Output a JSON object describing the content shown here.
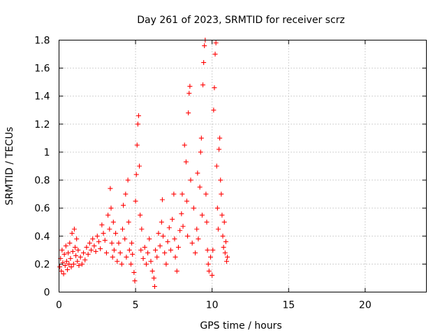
{
  "chart_data": {
    "type": "scatter",
    "title": "Day 261 of 2023, SRMTID for receiver scrz",
    "xlabel": "GPS time / hours",
    "ylabel": "SRMTID / TECUs",
    "xlim": [
      0,
      24
    ],
    "ylim": [
      0,
      1.8
    ],
    "xticks": [
      "0",
      "5",
      "10",
      "15",
      "20"
    ],
    "xtick_values": [
      0,
      5,
      10,
      15,
      20
    ],
    "yticks": [
      "0",
      "0.2",
      "0.4",
      "0.6",
      "0.8",
      "1",
      "1.2",
      "1.4",
      "1.6",
      "1.8"
    ],
    "ytick_values": [
      0,
      0.2,
      0.4,
      0.6,
      0.8,
      1.0,
      1.2,
      1.4,
      1.6,
      1.8
    ],
    "grid": true,
    "marker": "+",
    "color": "#ff0000",
    "series": [
      {
        "name": "SRMTID",
        "points": [
          [
            0.05,
            0.18
          ],
          [
            0.1,
            0.24
          ],
          [
            0.15,
            0.15
          ],
          [
            0.2,
            0.3
          ],
          [
            0.25,
            0.21
          ],
          [
            0.3,
            0.13
          ],
          [
            0.35,
            0.27
          ],
          [
            0.4,
            0.19
          ],
          [
            0.45,
            0.33
          ],
          [
            0.5,
            0.22
          ],
          [
            0.55,
            0.16
          ],
          [
            0.6,
            0.28
          ],
          [
            0.65,
            0.2
          ],
          [
            0.7,
            0.35
          ],
          [
            0.75,
            0.24
          ],
          [
            0.8,
            0.18
          ],
          [
            0.85,
            0.42
          ],
          [
            0.9,
            0.29
          ],
          [
            0.95,
            0.2
          ],
          [
            1.0,
            0.45
          ],
          [
            1.05,
            0.32
          ],
          [
            1.1,
            0.26
          ],
          [
            1.15,
            0.38
          ],
          [
            1.2,
            0.22
          ],
          [
            1.25,
            0.3
          ],
          [
            1.3,
            0.19
          ],
          [
            1.4,
            0.25
          ],
          [
            1.5,
            0.2
          ],
          [
            1.6,
            0.28
          ],
          [
            1.7,
            0.23
          ],
          [
            1.8,
            0.32
          ],
          [
            1.9,
            0.27
          ],
          [
            2.0,
            0.35
          ],
          [
            2.1,
            0.3
          ],
          [
            2.2,
            0.38
          ],
          [
            2.3,
            0.33
          ],
          [
            2.4,
            0.29
          ],
          [
            2.5,
            0.4
          ],
          [
            2.6,
            0.36
          ],
          [
            2.7,
            0.31
          ],
          [
            2.8,
            0.48
          ],
          [
            2.9,
            0.42
          ],
          [
            3.0,
            0.37
          ],
          [
            3.1,
            0.28
          ],
          [
            3.2,
            0.55
          ],
          [
            3.3,
            0.45
          ],
          [
            3.35,
            0.74
          ],
          [
            3.4,
            0.6
          ],
          [
            3.45,
            0.35
          ],
          [
            3.5,
            0.25
          ],
          [
            3.55,
            0.5
          ],
          [
            3.6,
            0.3
          ],
          [
            3.7,
            0.42
          ],
          [
            3.8,
            0.22
          ],
          [
            3.9,
            0.35
          ],
          [
            4.0,
            0.28
          ],
          [
            4.1,
            0.2
          ],
          [
            4.15,
            0.45
          ],
          [
            4.2,
            0.62
          ],
          [
            4.3,
            0.38
          ],
          [
            4.35,
            0.7
          ],
          [
            4.4,
            0.25
          ],
          [
            4.5,
            0.8
          ],
          [
            4.55,
            0.5
          ],
          [
            4.6,
            0.3
          ],
          [
            4.7,
            0.2
          ],
          [
            4.75,
            0.35
          ],
          [
            4.8,
            0.27
          ],
          [
            4.9,
            0.14
          ],
          [
            4.95,
            0.08
          ],
          [
            5.0,
            0.65
          ],
          [
            5.05,
            0.84
          ],
          [
            5.1,
            1.05
          ],
          [
            5.15,
            1.2
          ],
          [
            5.2,
            1.26
          ],
          [
            5.25,
            0.9
          ],
          [
            5.3,
            0.55
          ],
          [
            5.35,
            0.3
          ],
          [
            5.4,
            0.45
          ],
          [
            5.5,
            0.24
          ],
          [
            5.6,
            0.32
          ],
          [
            5.7,
            0.2
          ],
          [
            5.8,
            0.28
          ],
          [
            5.9,
            0.38
          ],
          [
            6.0,
            0.22
          ],
          [
            6.1,
            0.15
          ],
          [
            6.2,
            0.1
          ],
          [
            6.25,
            0.04
          ],
          [
            6.3,
            0.3
          ],
          [
            6.4,
            0.25
          ],
          [
            6.5,
            0.42
          ],
          [
            6.6,
            0.33
          ],
          [
            6.7,
            0.5
          ],
          [
            6.75,
            0.66
          ],
          [
            6.8,
            0.4
          ],
          [
            6.9,
            0.28
          ],
          [
            7.0,
            0.2
          ],
          [
            7.1,
            0.36
          ],
          [
            7.2,
            0.46
          ],
          [
            7.3,
            0.3
          ],
          [
            7.4,
            0.52
          ],
          [
            7.5,
            0.7
          ],
          [
            7.55,
            0.38
          ],
          [
            7.6,
            0.25
          ],
          [
            7.7,
            0.15
          ],
          [
            7.8,
            0.32
          ],
          [
            7.9,
            0.44
          ],
          [
            8.0,
            0.56
          ],
          [
            8.05,
            0.7
          ],
          [
            8.1,
            0.47
          ],
          [
            8.2,
            1.05
          ],
          [
            8.3,
            0.93
          ],
          [
            8.35,
            0.65
          ],
          [
            8.4,
            0.4
          ],
          [
            8.45,
            1.28
          ],
          [
            8.5,
            1.42
          ],
          [
            8.55,
            1.47
          ],
          [
            8.6,
            0.8
          ],
          [
            8.7,
            0.35
          ],
          [
            8.8,
            0.6
          ],
          [
            8.9,
            0.28
          ],
          [
            9.0,
            0.45
          ],
          [
            9.05,
            0.85
          ],
          [
            9.1,
            0.38
          ],
          [
            9.2,
            0.75
          ],
          [
            9.25,
            1.0
          ],
          [
            9.3,
            1.1
          ],
          [
            9.35,
            0.55
          ],
          [
            9.4,
            1.48
          ],
          [
            9.45,
            1.64
          ],
          [
            9.5,
            1.76
          ],
          [
            9.55,
            1.8
          ],
          [
            9.6,
            0.7
          ],
          [
            9.65,
            0.5
          ],
          [
            9.7,
            0.3
          ],
          [
            9.75,
            0.2
          ],
          [
            9.8,
            0.15
          ],
          [
            9.9,
            0.25
          ],
          [
            10.0,
            0.12
          ],
          [
            10.05,
            0.3
          ],
          [
            10.1,
            1.3
          ],
          [
            10.15,
            1.46
          ],
          [
            10.2,
            1.7
          ],
          [
            10.25,
            1.78
          ],
          [
            10.3,
            0.9
          ],
          [
            10.35,
            0.6
          ],
          [
            10.4,
            0.45
          ],
          [
            10.45,
            1.02
          ],
          [
            10.5,
            1.1
          ],
          [
            10.55,
            0.8
          ],
          [
            10.6,
            0.7
          ],
          [
            10.65,
            0.55
          ],
          [
            10.7,
            0.4
          ],
          [
            10.75,
            0.32
          ],
          [
            10.8,
            0.5
          ],
          [
            10.85,
            0.28
          ],
          [
            10.9,
            0.36
          ],
          [
            10.95,
            0.22
          ],
          [
            11.0,
            0.25
          ]
        ]
      }
    ]
  }
}
